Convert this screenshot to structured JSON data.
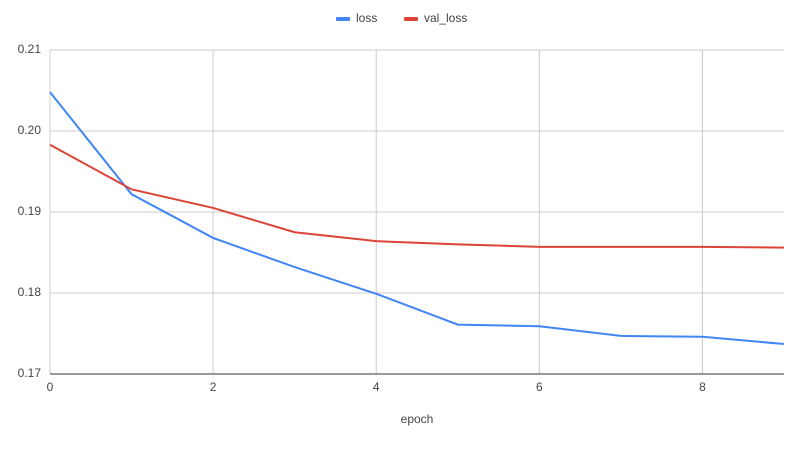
{
  "chart_data": {
    "type": "line",
    "x_label": "epoch",
    "x": [
      0,
      1,
      2,
      3,
      4,
      5,
      6,
      7,
      8,
      9
    ],
    "series": [
      {
        "name": "loss",
        "color": "#4285f4",
        "values": [
          0.2048,
          0.1922,
          0.1868,
          0.1832,
          0.1799,
          0.1761,
          0.1759,
          0.1747,
          0.1746,
          0.1737
        ]
      },
      {
        "name": "val_loss",
        "color": "#db4437",
        "values": [
          0.1983,
          0.1928,
          0.1905,
          0.1875,
          0.1864,
          0.186,
          0.1857,
          0.1857,
          0.1857,
          0.1856
        ]
      }
    ],
    "xlim": [
      0,
      9
    ],
    "xticks": [
      0,
      2,
      4,
      6,
      8
    ],
    "ylim": [
      0.17,
      0.21
    ],
    "yticks": [
      0.17,
      0.18,
      0.19,
      {
        "value": 0.2,
        "label": "0.20"
      },
      0.21
    ],
    "grid": true,
    "legend": "top"
  }
}
